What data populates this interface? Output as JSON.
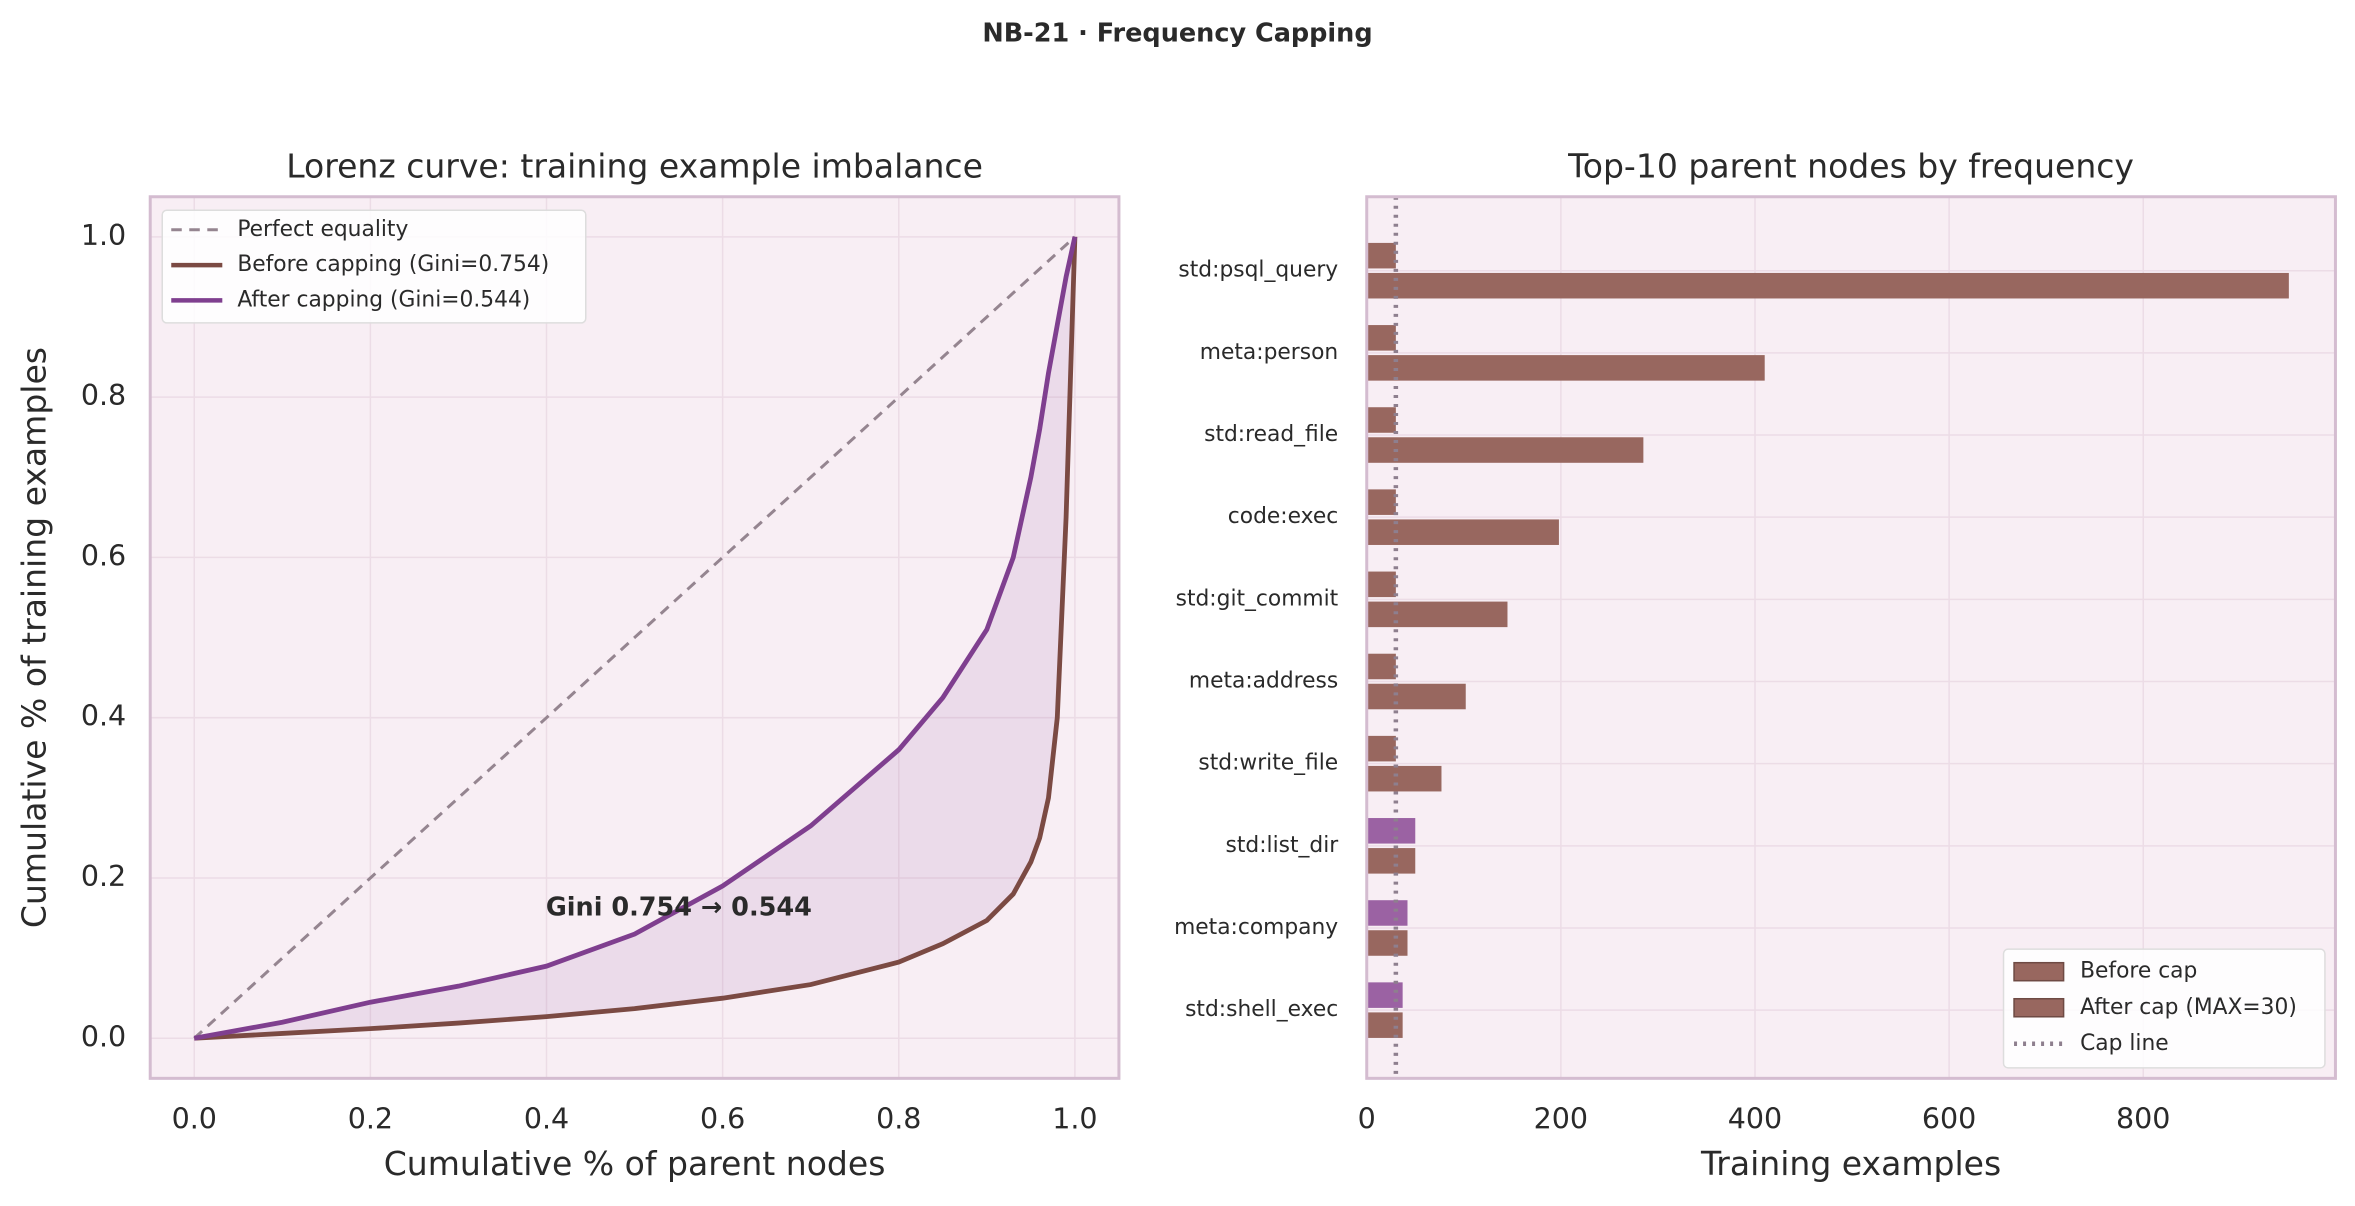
{
  "title": "NB-21 · Frequency Capping",
  "chart_data": [
    {
      "type": "line",
      "title": "Lorenz curve: training example imbalance",
      "xlabel": "Cumulative % of parent nodes",
      "ylabel": "Cumulative % of training examples",
      "x": [
        0,
        0.1,
        0.2,
        0.3,
        0.4,
        0.5,
        0.6,
        0.7,
        0.8,
        0.85,
        0.9,
        0.93,
        0.95,
        0.96,
        0.97,
        0.98,
        0.99,
        1.0
      ],
      "series": [
        {
          "name": "Perfect equality",
          "color": "#958590",
          "dashed": true,
          "values": [
            0,
            0.1,
            0.2,
            0.3,
            0.4,
            0.5,
            0.6,
            0.7,
            0.8,
            0.85,
            0.9,
            0.93,
            0.95,
            0.96,
            0.97,
            0.98,
            0.99,
            1.0
          ]
        },
        {
          "name": "Before capping (Gini=0.754)",
          "color": "#7b4a43",
          "values": [
            0,
            0.006,
            0.012,
            0.019,
            0.027,
            0.037,
            0.05,
            0.067,
            0.095,
            0.118,
            0.147,
            0.18,
            0.22,
            0.25,
            0.3,
            0.4,
            0.65,
            1.0
          ]
        },
        {
          "name": "After capping (Gini=0.544)",
          "color": "#7f3f8f",
          "values": [
            0,
            0.02,
            0.045,
            0.065,
            0.09,
            0.13,
            0.19,
            0.265,
            0.36,
            0.425,
            0.51,
            0.6,
            0.7,
            0.76,
            0.83,
            0.89,
            0.95,
            1.0
          ]
        }
      ],
      "fill_between": true,
      "annotation": "Gini 0.754 → 0.544",
      "xlim": [
        -0.05,
        1.05
      ],
      "ylim": [
        -0.05,
        1.05
      ],
      "xticks": [
        {
          "value": 0,
          "label": "0.0"
        },
        {
          "value": 0.2,
          "label": "0.2"
        },
        {
          "value": 0.4,
          "label": "0.4"
        },
        {
          "value": 0.6,
          "label": "0.6"
        },
        {
          "value": 0.8,
          "label": "0.8"
        },
        {
          "value": 1,
          "label": "1.0"
        }
      ],
      "yticks": [
        {
          "value": 0,
          "label": "0.0"
        },
        {
          "value": 0.2,
          "label": "0.2"
        },
        {
          "value": 0.4,
          "label": "0.4"
        },
        {
          "value": 0.6,
          "label": "0.6"
        },
        {
          "value": 0.8,
          "label": "0.8"
        },
        {
          "value": 1,
          "label": "1.0"
        }
      ],
      "grid": true,
      "legend": "upper left"
    },
    {
      "type": "barh",
      "title": "Top-10 parent nodes by frequency",
      "xlabel": "Training examples",
      "categories": [
        "std:psql_query",
        "meta:person",
        "std:read_file",
        "code:exec",
        "std:git_commit",
        "meta:address",
        "std:write_file",
        "std:list_dir",
        "meta:company",
        "std:shell_exec"
      ],
      "series": [
        {
          "name": "Before cap",
          "color": "#98675f",
          "values": [
            950,
            410,
            285,
            198,
            145,
            102,
            77,
            50,
            42,
            37
          ]
        },
        {
          "name": "After cap (MAX=30)",
          "color": "#98675f",
          "colors": [
            "#98675f",
            "#98675f",
            "#98675f",
            "#98675f",
            "#98675f",
            "#98675f",
            "#98675f",
            "#9b62a3",
            "#9b62a3",
            "#9b62a3"
          ],
          "values": [
            30,
            30,
            30,
            30,
            30,
            30,
            30,
            50,
            42,
            37
          ]
        }
      ],
      "cap_line": {
        "name": "Cap line",
        "value": 30,
        "color": "#8e7f8e"
      },
      "xlim": [
        0,
        998
      ],
      "xticks": [
        0,
        200,
        400,
        600,
        800
      ],
      "grid": true,
      "legend": "lower right"
    }
  ]
}
